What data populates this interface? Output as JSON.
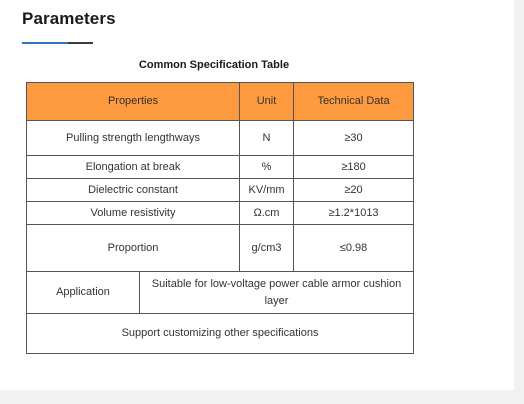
{
  "section": {
    "title": "Parameters"
  },
  "table": {
    "caption": "Common Specification Table",
    "headers": {
      "properties": "Properties",
      "unit": "Unit",
      "technical_data": "Technical Data"
    },
    "rows": [
      {
        "property": "Pulling strength lengthways",
        "unit": "N",
        "value": "≥30"
      },
      {
        "property": "Elongation at break",
        "unit": "%",
        "value": "≥180"
      },
      {
        "property": "Dielectric constant",
        "unit": "KV/mm",
        "value": "≥20"
      },
      {
        "property": "Volume resistivity",
        "unit": "Ω.cm",
        "value": "≥1.2*1013"
      },
      {
        "property": "Proportion",
        "unit": "g/cm3",
        "value": "≤0.98"
      }
    ],
    "application": {
      "label": "Application",
      "value": "Suitable for low-voltage power cable armor cushion layer"
    },
    "footer_note": "Support customizing other specifications"
  },
  "colors": {
    "header_background": "#fd9a3f",
    "accent_underline": "#2f74c0",
    "page_background": "#f1f1f1"
  }
}
